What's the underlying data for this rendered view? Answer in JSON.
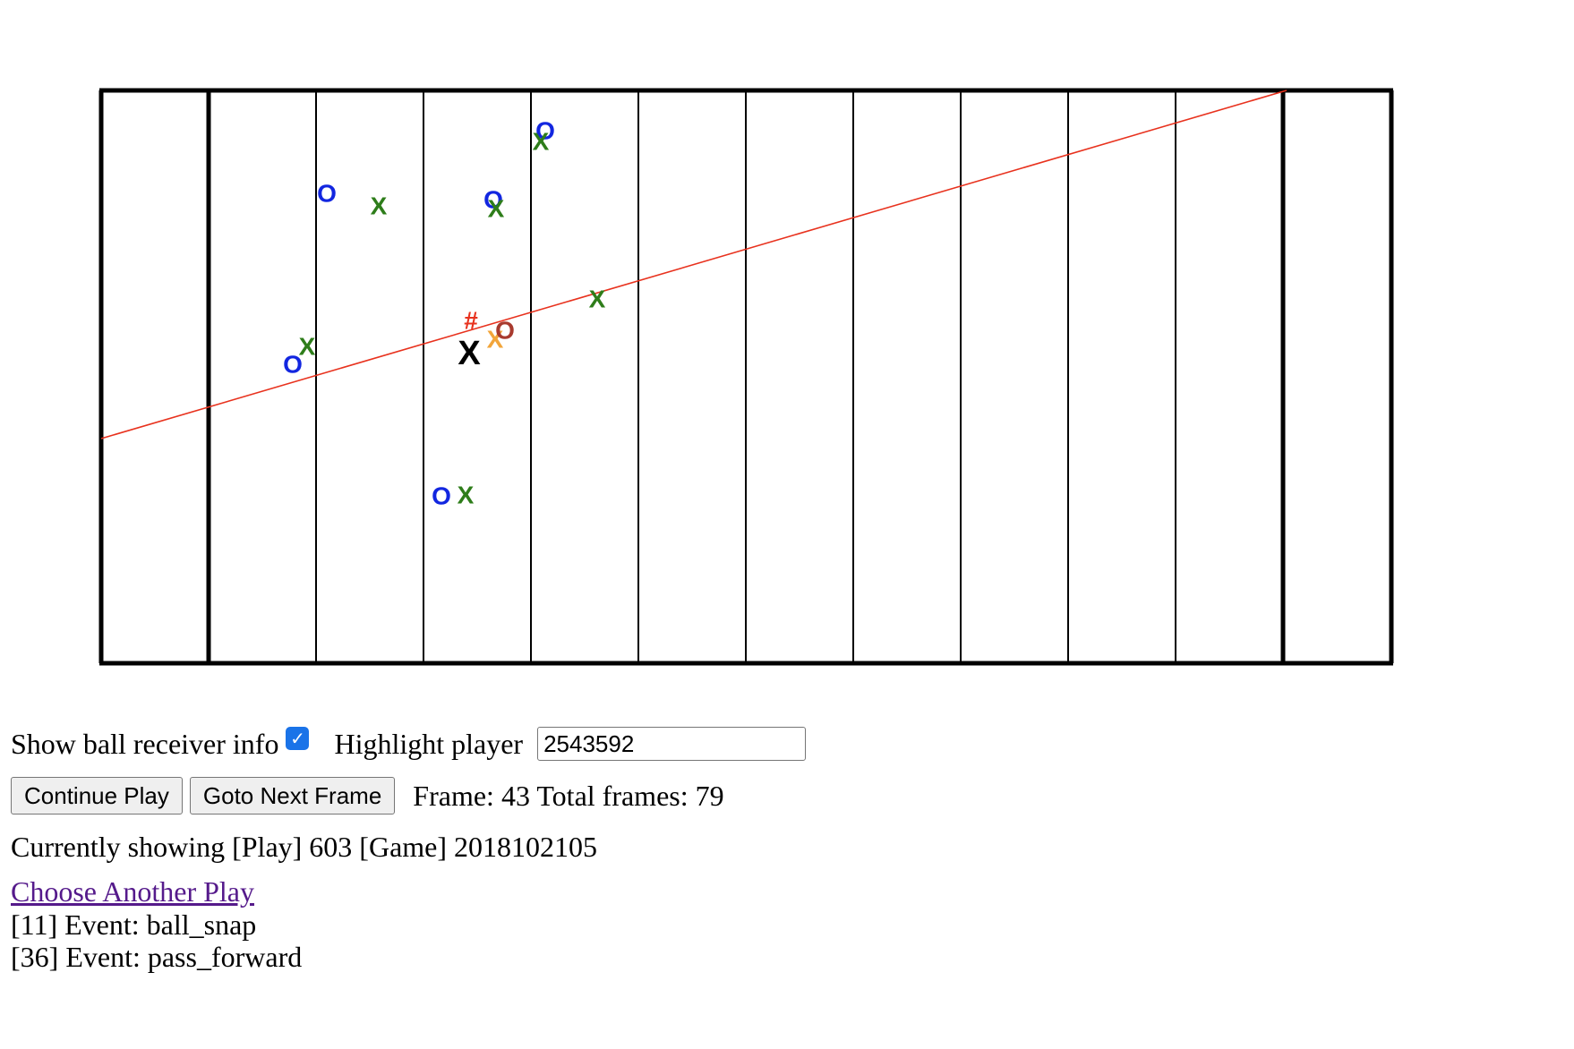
{
  "field": {
    "markers": [
      {
        "symbol": "O",
        "color": "#1226e0",
        "role": "offense"
      },
      {
        "symbol": "O",
        "color": "#1226e0",
        "role": "offense"
      },
      {
        "symbol": "O",
        "color": "#1226e0",
        "role": "offense"
      },
      {
        "symbol": "O",
        "color": "#1226e0",
        "role": "offense"
      },
      {
        "symbol": "O",
        "color": "#1226e0",
        "role": "offense"
      },
      {
        "symbol": "X",
        "color": "#2e7d1a",
        "role": "defense"
      },
      {
        "symbol": "X",
        "color": "#2e7d1a",
        "role": "defense"
      },
      {
        "symbol": "X",
        "color": "#2e7d1a",
        "role": "defense"
      },
      {
        "symbol": "X",
        "color": "#2e7d1a",
        "role": "defense"
      },
      {
        "symbol": "X",
        "color": "#2e7d1a",
        "role": "defense"
      },
      {
        "symbol": "X",
        "color": "#2e7d1a",
        "role": "defense"
      },
      {
        "symbol": "#",
        "color": "#e8321e",
        "role": "ball"
      },
      {
        "symbol": "X",
        "color": "#000000",
        "role": "highlighted-player"
      },
      {
        "symbol": "X",
        "color": "#f2a53a",
        "role": "receiver-defender"
      },
      {
        "symbol": "O",
        "color": "#a83a2e",
        "role": "ball-receiver"
      }
    ],
    "line_color": "#e8321e",
    "line_color_name": "red"
  },
  "controls": {
    "show_receiver_label": "Show ball receiver info",
    "show_receiver_checked": true,
    "highlight_label": "Highlight player",
    "highlight_value": "2543592",
    "continue_button": "Continue Play",
    "next_frame_button": "Goto Next Frame",
    "frame_info": "Frame: 43 Total frames: 79",
    "currently_showing": "Currently showing [Play] 603 [Game] 2018102105",
    "choose_link": "Choose Another Play",
    "events": [
      "[11] Event: ball_snap",
      "[36] Event: pass_forward"
    ]
  }
}
